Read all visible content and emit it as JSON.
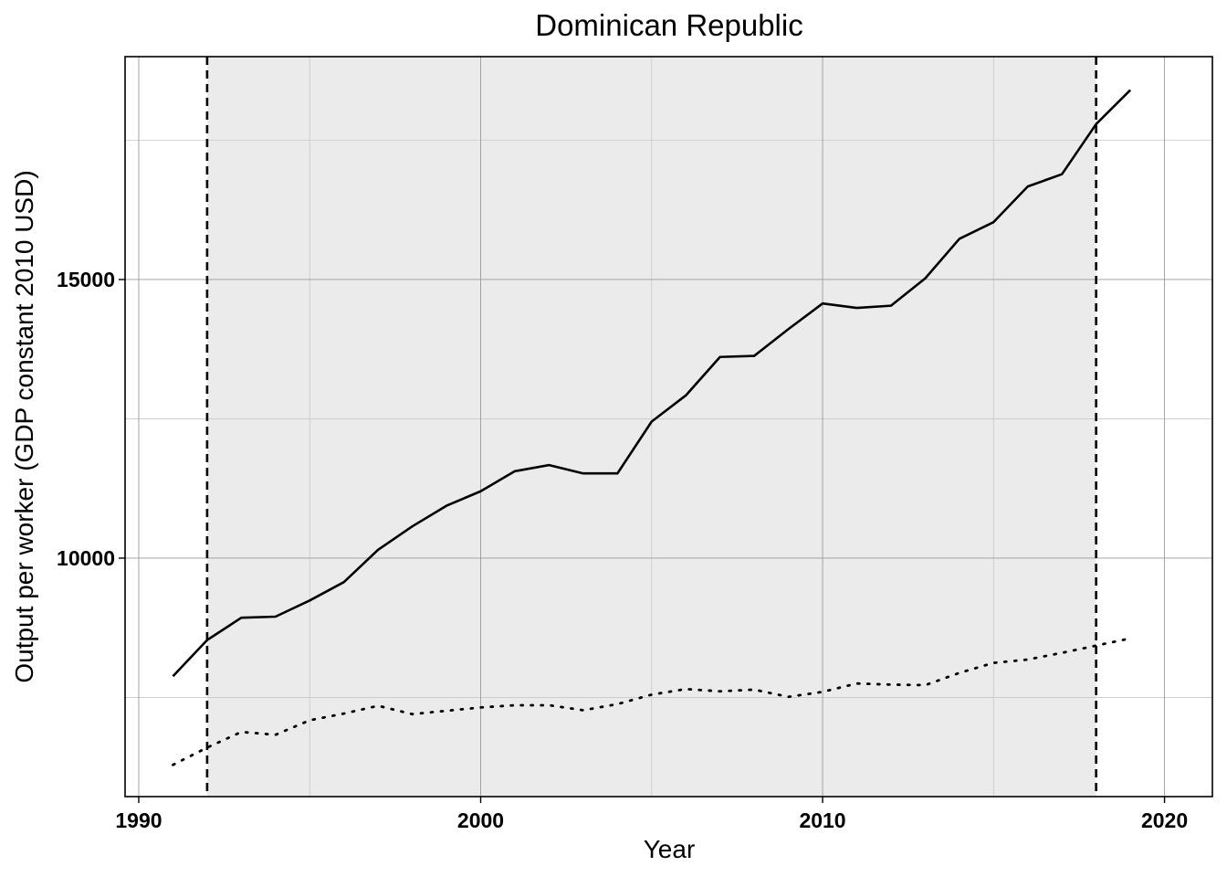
{
  "chart_data": {
    "type": "line",
    "title": "Dominican Republic",
    "xlabel": "Year",
    "ylabel": "Output per worker (GDP constant 2010 USD)",
    "xlim": [
      1989.6,
      2021.4
    ],
    "ylim": [
      5720,
      19000
    ],
    "x_ticks": [
      1990,
      2000,
      2010,
      2020
    ],
    "y_ticks": [
      10000,
      15000
    ],
    "minor_y_gridlines": [
      7500,
      12500,
      17500
    ],
    "minor_x_gridlines": [
      1995,
      2005,
      2015
    ],
    "grid": true,
    "shaded_region": [
      1992,
      2018
    ],
    "vertical_lines": [
      1992,
      2018
    ],
    "colors": {
      "line": "#000000",
      "shade": "#ebebeb",
      "grid": "#9a9a9a"
    },
    "x": [
      1991,
      1992,
      1993,
      1994,
      1995,
      1996,
      1997,
      1998,
      1999,
      2000,
      2001,
      2002,
      2003,
      2004,
      2005,
      2006,
      2007,
      2008,
      2009,
      2010,
      2011,
      2012,
      2013,
      2014,
      2015,
      2016,
      2017,
      2018,
      2019
    ],
    "series": [
      {
        "style": "solid",
        "values": [
          7880,
          8530,
          8930,
          8950,
          9240,
          9570,
          10150,
          10570,
          10940,
          11200,
          11560,
          11670,
          11520,
          11520,
          12450,
          12920,
          13610,
          13630,
          14110,
          14570,
          14490,
          14530,
          15020,
          15730,
          16030,
          16670,
          16890,
          17790,
          18400
        ]
      },
      {
        "style": "dotted",
        "values": [
          6290,
          6600,
          6880,
          6830,
          7090,
          7210,
          7350,
          7200,
          7260,
          7320,
          7360,
          7360,
          7270,
          7380,
          7550,
          7650,
          7610,
          7640,
          7510,
          7600,
          7750,
          7730,
          7720,
          7940,
          8120,
          8180,
          8300,
          8430,
          8560
        ]
      }
    ]
  }
}
